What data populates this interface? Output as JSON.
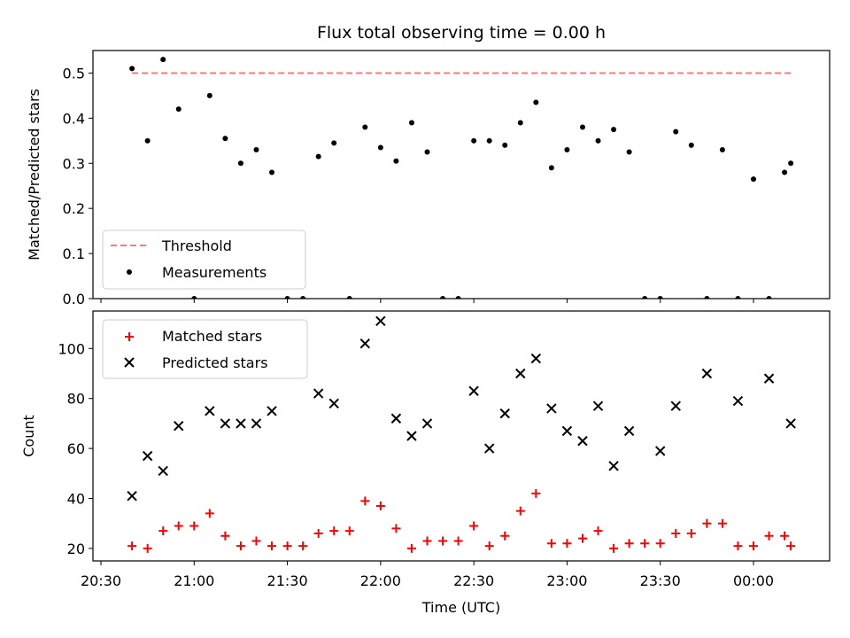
{
  "chart_data": [
    {
      "type": "scatter",
      "title": "Flux total observing time = 0.00 h",
      "xlabel": "",
      "ylabel": "Matched/Predicted stars",
      "ylim": [
        0,
        0.55
      ],
      "yticks": [
        "0.0",
        "0.1",
        "0.2",
        "0.3",
        "0.4",
        "0.5"
      ],
      "legend_position": "lower-left",
      "threshold": {
        "name": "Threshold",
        "value": 0.5,
        "x_start": "20:40",
        "x_end": "00:12",
        "color": "#ff7777",
        "style": "dashed"
      },
      "series": [
        {
          "name": "Measurements",
          "color": "#000000",
          "marker": "dot",
          "x": [
            "20:40",
            "20:45",
            "20:50",
            "20:55",
            "21:00",
            "21:05",
            "21:10",
            "21:15",
            "21:20",
            "21:25",
            "21:30",
            "21:35",
            "21:40",
            "21:45",
            "21:50",
            "21:55",
            "22:00",
            "22:05",
            "22:10",
            "22:15",
            "22:20",
            "22:25",
            "22:30",
            "22:35",
            "22:40",
            "22:45",
            "22:50",
            "22:55",
            "23:00",
            "23:05",
            "23:10",
            "23:15",
            "23:20",
            "23:25",
            "23:30",
            "23:35",
            "23:40",
            "23:45",
            "23:50",
            "23:55",
            "00:00",
            "00:05",
            "00:10",
            "00:12"
          ],
          "y": [
            0.51,
            0.35,
            0.53,
            0.42,
            0.0,
            0.45,
            0.355,
            0.3,
            0.33,
            0.28,
            0.0,
            0.0,
            0.315,
            0.345,
            0.0,
            0.38,
            0.335,
            0.305,
            0.39,
            0.325,
            0.0,
            0.0,
            0.35,
            0.35,
            0.34,
            0.39,
            0.435,
            0.29,
            0.33,
            0.38,
            0.35,
            0.375,
            0.325,
            0.0,
            0.0,
            0.37,
            0.34,
            0.0,
            0.33,
            0.0,
            0.265,
            0.0,
            0.28,
            0.3
          ]
        }
      ]
    },
    {
      "type": "scatter",
      "title": "",
      "xlabel": "Time (UTC)",
      "ylabel": "Count",
      "ylim": [
        15,
        115
      ],
      "yticks": [
        "20",
        "40",
        "60",
        "80",
        "100"
      ],
      "xticks": [
        "20:30",
        "21:00",
        "21:30",
        "22:00",
        "22:30",
        "23:00",
        "23:30",
        "00:00"
      ],
      "legend_position": "top-left",
      "series": [
        {
          "name": "Matched stars",
          "color": "#ff0000",
          "marker": "plus",
          "x": [
            "20:40",
            "20:45",
            "20:50",
            "20:55",
            "21:00",
            "21:05",
            "21:10",
            "21:15",
            "21:20",
            "21:25",
            "21:30",
            "21:35",
            "21:40",
            "21:45",
            "21:50",
            "21:55",
            "22:00",
            "22:05",
            "22:10",
            "22:15",
            "22:20",
            "22:25",
            "22:30",
            "22:35",
            "22:40",
            "22:45",
            "22:50",
            "22:55",
            "23:00",
            "23:05",
            "23:10",
            "23:15",
            "23:20",
            "23:25",
            "23:30",
            "23:35",
            "23:40",
            "23:45",
            "23:50",
            "23:55",
            "00:00",
            "00:05",
            "00:10",
            "00:12"
          ],
          "y": [
            21,
            20,
            27,
            29,
            29,
            34,
            25,
            21,
            23,
            21,
            21,
            21,
            26,
            27,
            27,
            39,
            37,
            28,
            20,
            23,
            23,
            23,
            29,
            21,
            25,
            35,
            42,
            22,
            22,
            24,
            27,
            20,
            22,
            22,
            22,
            26,
            26,
            30,
            30,
            21,
            21,
            25,
            25,
            21
          ]
        },
        {
          "name": "Predicted stars",
          "color": "#000000",
          "marker": "cross",
          "x": [
            "20:40",
            "20:45",
            "20:50",
            "20:55",
            "21:05",
            "21:10",
            "21:15",
            "21:20",
            "21:25",
            "21:40",
            "21:45",
            "21:55",
            "22:00",
            "22:05",
            "22:10",
            "22:15",
            "22:30",
            "22:35",
            "22:40",
            "22:45",
            "22:50",
            "22:55",
            "23:00",
            "23:05",
            "23:10",
            "23:15",
            "23:20",
            "23:30",
            "23:35",
            "23:45",
            "23:55",
            "00:05",
            "00:12"
          ],
          "y": [
            41,
            57,
            51,
            69,
            75,
            70,
            70,
            70,
            75,
            82,
            78,
            102,
            111,
            72,
            65,
            70,
            83,
            60,
            74,
            90,
            96,
            76,
            67,
            63,
            77,
            53,
            67,
            59,
            77,
            90,
            79,
            88,
            70
          ]
        }
      ]
    }
  ]
}
